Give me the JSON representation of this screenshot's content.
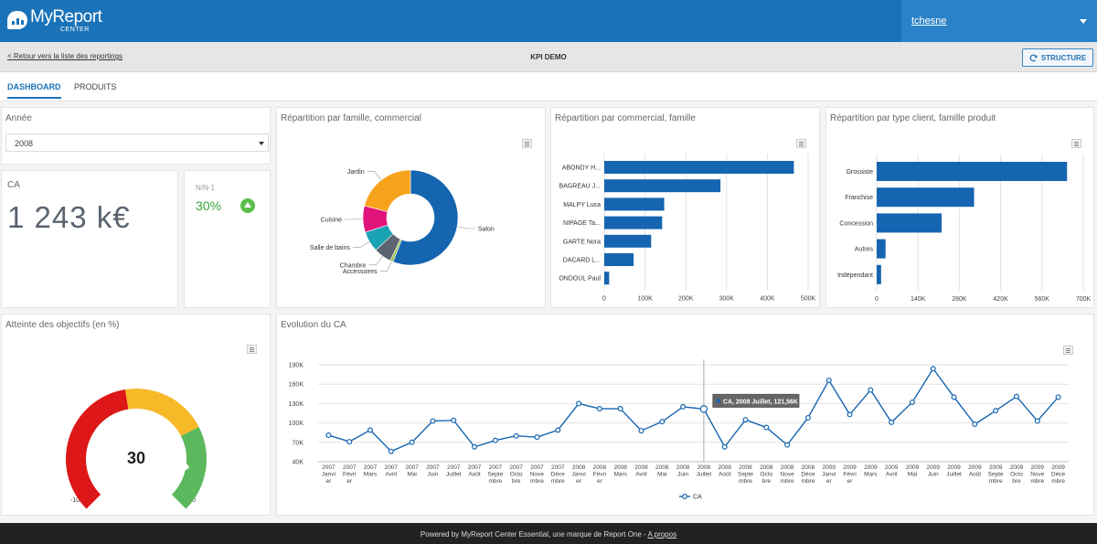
{
  "app": {
    "logo_text": "MyReport",
    "logo_sub": "CENTER",
    "user": "tchesne"
  },
  "subbar": {
    "back_link": "< Retour vers la liste des reportings",
    "title": "KPI DEMO",
    "structure_label": "STRUCTURE"
  },
  "tabs": [
    {
      "label": "DASHBOARD",
      "active": true
    },
    {
      "label": "PRODUITS",
      "active": false
    }
  ],
  "colors": {
    "brand": "#1a73b8",
    "bar": "#1565b0",
    "positive": "#35a33a"
  },
  "filters": {
    "year_title": "Année",
    "year_value": "2008"
  },
  "kpi": {
    "ca_label": "CA",
    "ca_value": "1 243  k€",
    "nn_label": "N/N-1",
    "nn_extra": ".",
    "nn_value": "30%",
    "nn_trend_icon": "arrow-up-icon"
  },
  "gauge": {
    "title": "Atteinte des objectifs (en %)",
    "value_label": "30",
    "min_label": "-100",
    "max_label": "50"
  },
  "footer": {
    "text": "Powered by MyReport Center Essential, une marque de Report One - ",
    "link": "A propos"
  },
  "chart_data": [
    {
      "type": "pie",
      "title": "Répartition par famille, commercial",
      "donut": true,
      "slices": [
        {
          "name": "Salon",
          "value": 56,
          "color": "#1565b0"
        },
        {
          "name": "Accessoires",
          "value": 1,
          "color": "#9ec24b"
        },
        {
          "name": "Chambre",
          "value": 6,
          "color": "#5b6470"
        },
        {
          "name": "Salle de bains",
          "value": 7,
          "color": "#1aa3b3"
        },
        {
          "name": "Cuisine",
          "value": 9,
          "color": "#e0137a"
        },
        {
          "name": "Jardin",
          "value": 21,
          "color": "#f7a21b"
        }
      ]
    },
    {
      "type": "bar",
      "orientation": "horizontal",
      "title": "Répartition par commercial, famille",
      "categories": [
        "ABONDY H...",
        "BAGREAU J...",
        "MALPY Luca",
        "NIPAGE Ta...",
        "GARTE Nora",
        "DACARD L...",
        "ONDOUL Paul"
      ],
      "values": [
        465000,
        285000,
        147000,
        142000,
        115000,
        72000,
        12000
      ],
      "xlim": [
        0,
        500000
      ],
      "xticks": [
        "0",
        "100K",
        "200K",
        "300K",
        "400K",
        "500K"
      ],
      "grid": true
    },
    {
      "type": "bar",
      "orientation": "horizontal",
      "title": "Répartition par type client, famille produit",
      "categories": [
        "Grossiste",
        "Franchise",
        "Concession",
        "Autres",
        "Indépendant"
      ],
      "values": [
        645000,
        330000,
        220000,
        30000,
        15000
      ],
      "xlim": [
        0,
        700000
      ],
      "xticks": [
        "0",
        "140K",
        "280K",
        "420K",
        "560K",
        "700K"
      ],
      "grid": true
    },
    {
      "type": "gauge",
      "title": "Atteinte des objectifs (en %)",
      "value": 30,
      "min": -100,
      "max": 50,
      "bands": [
        {
          "from": -100,
          "to": -30,
          "color": "#dd1717"
        },
        {
          "from": -30,
          "to": 10,
          "color": "#f7b928"
        },
        {
          "from": 10,
          "to": 50,
          "color": "#5cb85c"
        }
      ]
    },
    {
      "type": "line",
      "title": "Evolution du CA",
      "series_name": "CA",
      "x": [
        "2007 Janvier",
        "2007 Février",
        "2007 Mars",
        "2007 Avril",
        "2007 Mai",
        "2007 Juin",
        "2007 Juillet",
        "2007 Août",
        "2007 Septembre",
        "2007 Octobre",
        "2007 Novembre",
        "2007 Décembre",
        "2008 Janvier",
        "2008 Février",
        "2008 Mars",
        "2008 Avril",
        "2008 Mai",
        "2008 Juin",
        "2008 Juillet",
        "2008 Août",
        "2008 Septembre",
        "2008 Octobre",
        "2008 Novembre",
        "2008 Décembre",
        "2009 Janvier",
        "2009 Février",
        "2009 Mars",
        "2009 Avril",
        "2009 Mai",
        "2009 Juin",
        "2009 Juillet",
        "2009 Août",
        "2009 Septembre",
        "2009 Octobre",
        "2009 Novembre",
        "2009 Décembre"
      ],
      "xticks": [
        [
          "2007",
          "Janvi",
          "er"
        ],
        [
          "2007",
          "Févri",
          "er"
        ],
        [
          "2007",
          "Mars"
        ],
        [
          "2007",
          "Avril"
        ],
        [
          "2007",
          "Mai"
        ],
        [
          "2007",
          "Juin"
        ],
        [
          "2007",
          "Juillet"
        ],
        [
          "2007",
          "Août"
        ],
        [
          "2007",
          "Septe",
          "mbre"
        ],
        [
          "2007",
          "Octo",
          "bre"
        ],
        [
          "2007",
          "Nove",
          "mbre"
        ],
        [
          "2007",
          "Déce",
          "mbre"
        ],
        [
          "2008",
          "Janvi",
          "er"
        ],
        [
          "2008",
          "Févri",
          "er"
        ],
        [
          "2008",
          "Mars"
        ],
        [
          "2008",
          "Avril"
        ],
        [
          "2008",
          "Mai"
        ],
        [
          "2008",
          "Juin"
        ],
        [
          "2008",
          "Juillet"
        ],
        [
          "2008",
          "Août"
        ],
        [
          "2008",
          "Septe",
          "mbre"
        ],
        [
          "2008",
          "Octo",
          "bre"
        ],
        [
          "2008",
          "Nove",
          "mbre"
        ],
        [
          "2008",
          "Déce",
          "mbre"
        ],
        [
          "2009",
          "Janvi",
          "er"
        ],
        [
          "2009",
          "Févri",
          "er"
        ],
        [
          "2009",
          "Mars"
        ],
        [
          "2009",
          "Avril"
        ],
        [
          "2009",
          "Mai"
        ],
        [
          "2009",
          "Juin"
        ],
        [
          "2009",
          "Juillet"
        ],
        [
          "2009",
          "Août"
        ],
        [
          "2009",
          "Septe",
          "mbre"
        ],
        [
          "2009",
          "Octo",
          "bre"
        ],
        [
          "2009",
          "Nove",
          "mbre"
        ],
        [
          "2009",
          "Déce",
          "mbre"
        ]
      ],
      "values": [
        81,
        71,
        89,
        56,
        70,
        103,
        104,
        63,
        73,
        80,
        78,
        89,
        130,
        122,
        122,
        88,
        102,
        125,
        121.56,
        63,
        105,
        93,
        66,
        108,
        166,
        113,
        151,
        101,
        132,
        184,
        140,
        98,
        119,
        141,
        103,
        140
      ],
      "ylim": [
        40,
        190
      ],
      "yticks": [
        "40K",
        "70K",
        "100K",
        "130K",
        "160K",
        "190K"
      ],
      "tooltip": "CA, 2008 Juillet, 121,56K",
      "tooltip_index": 18,
      "legend": "CA",
      "grid": true
    }
  ]
}
